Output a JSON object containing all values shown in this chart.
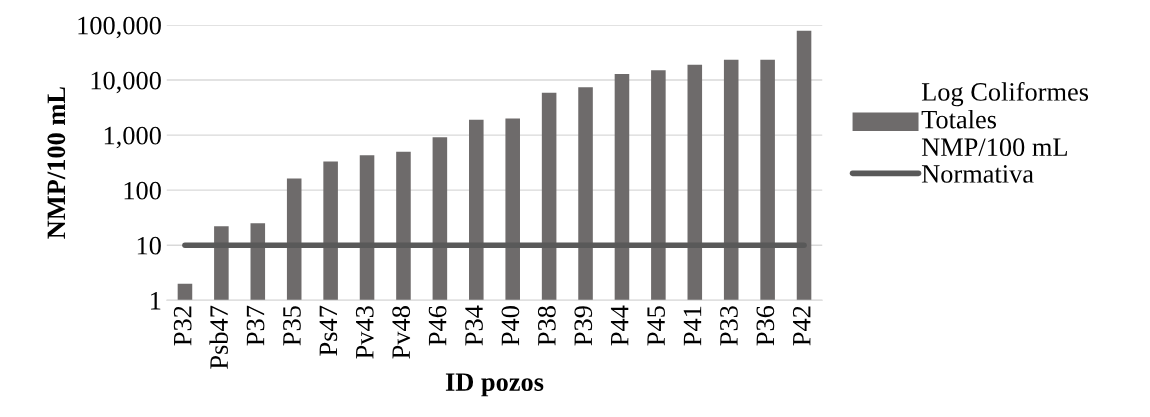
{
  "chart_data": {
    "type": "bar",
    "xlabel": "ID pozos",
    "ylabel": "NMP/100 mL",
    "categories": [
      "P32",
      "Psb47",
      "P37",
      "P35",
      "Ps47",
      "Pv43",
      "Pv48",
      "P46",
      "P34",
      "P40",
      "P38",
      "P39",
      "P44",
      "P45",
      "P41",
      "P33",
      "P36",
      "P42"
    ],
    "series": [
      {
        "name": "Log Coliformes Totales NMP/100 mL",
        "color": "#6e6b6b",
        "values": [
          2,
          22,
          25,
          163,
          333,
          430,
          500,
          910,
          1900,
          2000,
          5900,
          7400,
          12900,
          15000,
          19000,
          23400,
          23400,
          79000
        ]
      },
      {
        "name": "Normativa",
        "type": "line",
        "color": "#595959",
        "values": [
          10,
          10,
          10,
          10,
          10,
          10,
          10,
          10,
          10,
          10,
          10,
          10,
          10,
          10,
          10,
          10,
          10,
          10
        ]
      }
    ],
    "log": "y",
    "ylim": [
      1,
      100000
    ],
    "yticks": [
      {
        "value": 1,
        "label": "1"
      },
      {
        "value": 10,
        "label": "10"
      },
      {
        "value": 100,
        "label": "100"
      },
      {
        "value": 1000,
        "label": "1,000"
      },
      {
        "value": 10000,
        "label": "10,000"
      },
      {
        "value": 100000,
        "label": "100,000"
      }
    ],
    "grid": "y",
    "legend": "right",
    "marker": "none",
    "line_style": "solid"
  }
}
